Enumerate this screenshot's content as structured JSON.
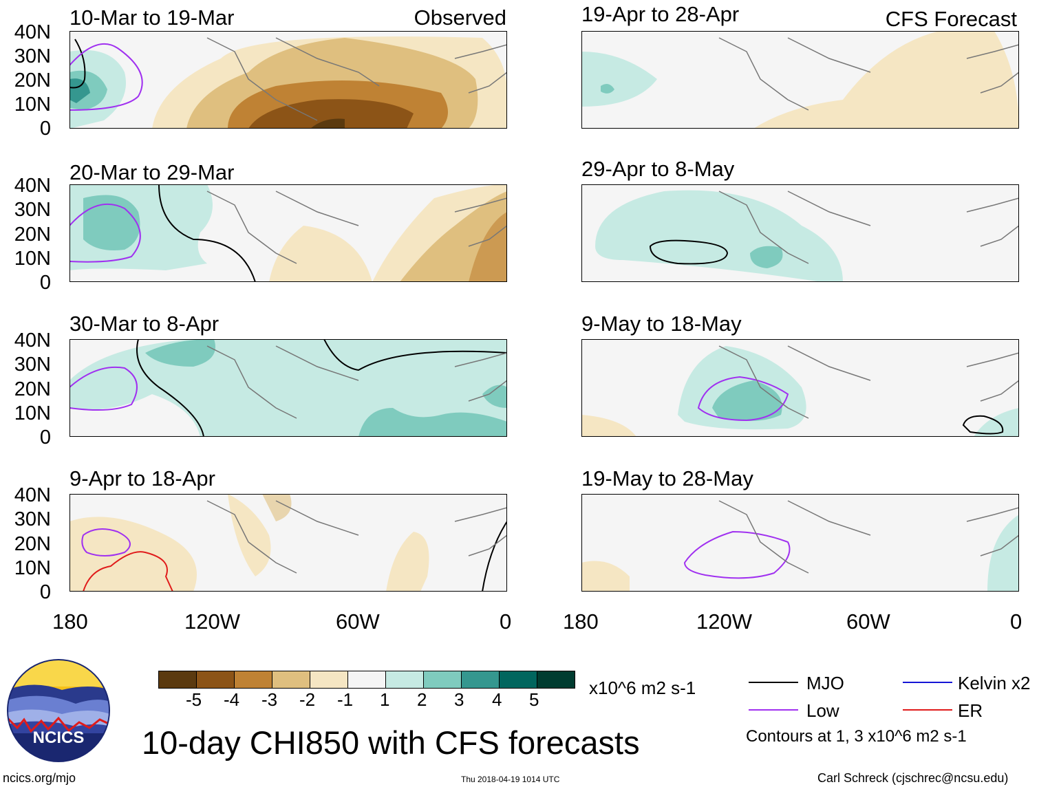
{
  "map": {
    "observed_label": "Observed",
    "forecast_label": "CFS Forecast",
    "y_ticks": [
      "40N",
      "30N",
      "20N",
      "10N",
      "0"
    ],
    "x_ticks": [
      "180",
      "120W",
      "60W",
      "0"
    ],
    "observed_panels": [
      {
        "period": "10-Mar to 19-Mar"
      },
      {
        "period": "20-Mar to 29-Mar"
      },
      {
        "period": "30-Mar to 8-Apr"
      },
      {
        "period": "9-Apr to 18-Apr"
      }
    ],
    "forecast_panels": [
      {
        "period": "19-Apr to 28-Apr"
      },
      {
        "period": "29-Apr to 8-May"
      },
      {
        "period": "9-May to 18-May"
      },
      {
        "period": "19-May to 28-May"
      }
    ]
  },
  "colorbar": {
    "colors": [
      "#5b3a0f",
      "#8c5417",
      "#bf8234",
      "#dfbf7f",
      "#f5e6c3",
      "#f5f5f5",
      "#c6eae3",
      "#7fcbbe",
      "#35978f",
      "#01665e",
      "#003c30"
    ],
    "ticks": [
      "-5",
      "-4",
      "-3",
      "-2",
      "-1",
      "1",
      "2",
      "3",
      "4",
      "5"
    ],
    "units": "x10^6 m2 s-1"
  },
  "title": "10-day CHI850 with CFS forecasts",
  "legend": {
    "items": [
      {
        "label": "MJO",
        "color": "#000000"
      },
      {
        "label": "Kelvin x2",
        "color": "#1515d6"
      },
      {
        "label": "Low",
        "color": "#a030f0"
      },
      {
        "label": "ER",
        "color": "#e01b1b"
      }
    ],
    "note": "Contours at 1, 3 x10^6 m2 s-1"
  },
  "logo": {
    "text": "NCICS"
  },
  "footer": {
    "left": "ncics.org/mjo",
    "center": "Thu 2018-04-19 1014 UTC",
    "right": "Carl Schreck (cjschrec@ncsu.edu)"
  }
}
